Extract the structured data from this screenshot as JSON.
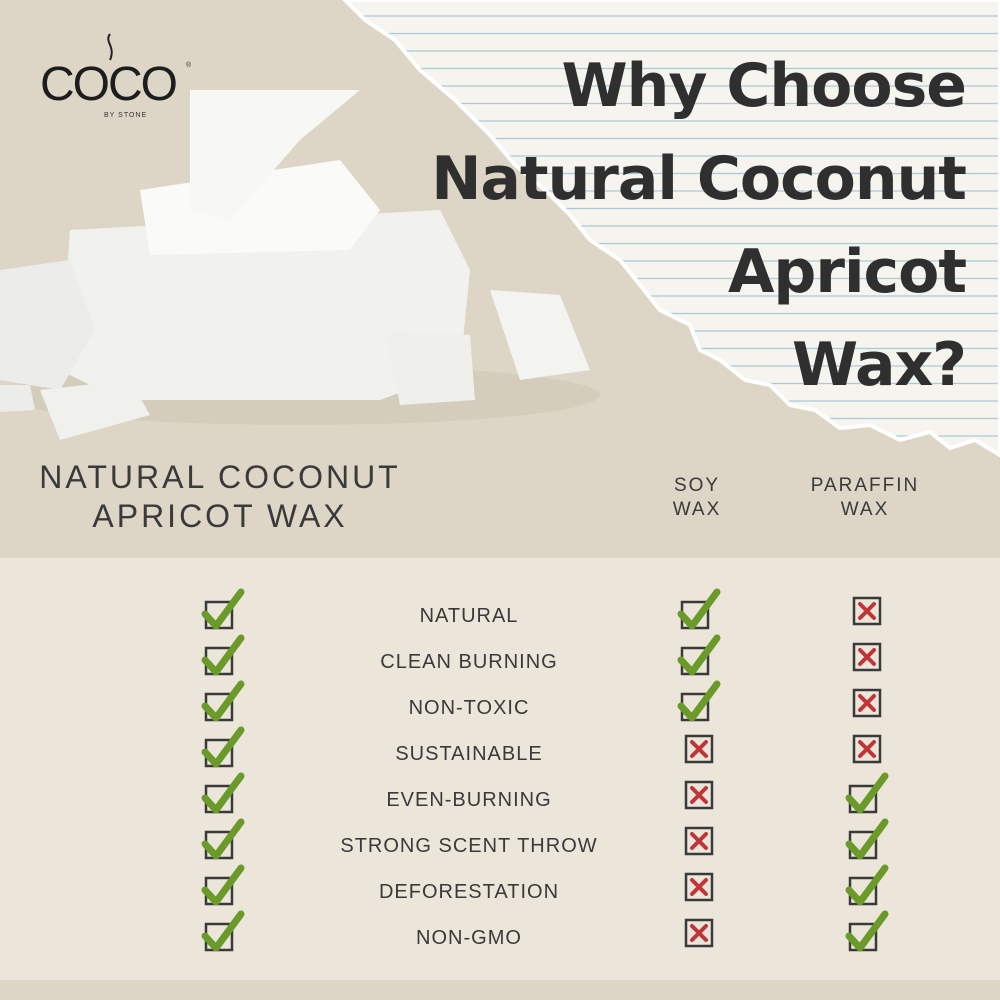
{
  "brand": {
    "logo_text": "COCO",
    "logo_sub": "BY STONE",
    "registered": "®"
  },
  "title": {
    "lines": [
      "Why Choose",
      "Natural Coconut",
      "Apricot",
      "Wax?"
    ]
  },
  "columns": {
    "main": [
      "NATURAL COCONUT",
      "APRICOT WAX"
    ],
    "soy": [
      "SOY",
      "WAX"
    ],
    "paraffin": [
      "PARAFFIN",
      "WAX"
    ]
  },
  "colors": {
    "check": "#6a9a2a",
    "cross": "#c0353a",
    "box": "#3a3a3a"
  },
  "rows": [
    {
      "label": "NATURAL",
      "coconut": true,
      "soy": true,
      "paraffin": false
    },
    {
      "label": "CLEAN BURNING",
      "coconut": true,
      "soy": true,
      "paraffin": false
    },
    {
      "label": "NON-TOXIC",
      "coconut": true,
      "soy": true,
      "paraffin": false
    },
    {
      "label": "SUSTAINABLE",
      "coconut": true,
      "soy": false,
      "paraffin": false
    },
    {
      "label": "EVEN-BURNING",
      "coconut": true,
      "soy": false,
      "paraffin": true
    },
    {
      "label": "STRONG SCENT THROW",
      "coconut": true,
      "soy": false,
      "paraffin": true
    },
    {
      "label": "DEFORESTATION",
      "coconut": true,
      "soy": false,
      "paraffin": true
    },
    {
      "label": "NON-GMO",
      "coconut": true,
      "soy": false,
      "paraffin": true
    }
  ]
}
